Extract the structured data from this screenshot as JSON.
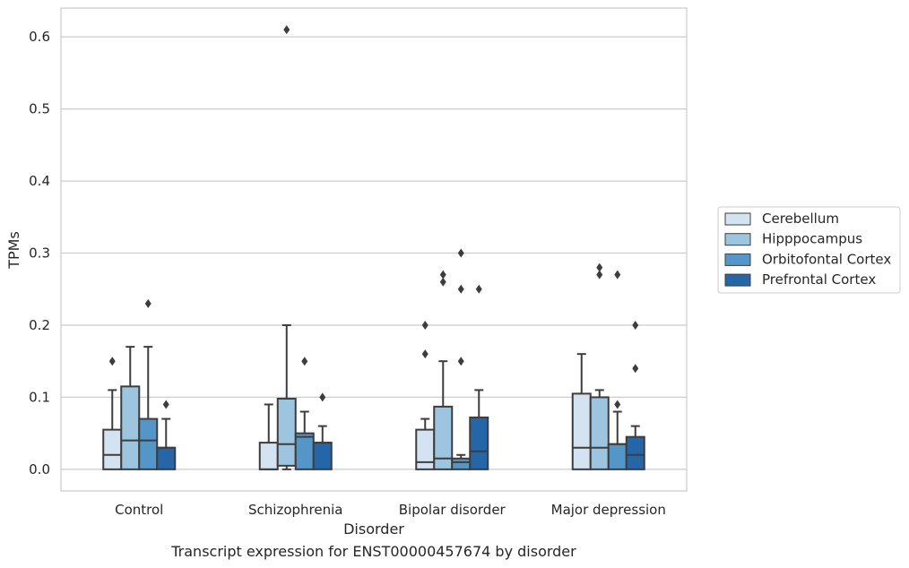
{
  "caption": "Transcript expression for ENST00000457674 by disorder",
  "chart_data": {
    "type": "box",
    "xlabel": "Disorder",
    "ylabel": "TPMs",
    "ylim": [
      -0.03,
      0.64
    ],
    "yticks": [
      0.0,
      0.1,
      0.2,
      0.3,
      0.4,
      0.5,
      0.6
    ],
    "ytick_labels": [
      "0.0",
      "0.1",
      "0.2",
      "0.3",
      "0.4",
      "0.5",
      "0.6"
    ],
    "grid": "horizontal",
    "legend_position": "right",
    "categories": [
      "Control",
      "Schizophrenia",
      "Bipolar disorder",
      "Major depression"
    ],
    "series": [
      {
        "name": "Cerebellum",
        "color": "#d4e3f2",
        "boxes": [
          {
            "whislo": 0.0,
            "q1": 0.0,
            "med": 0.02,
            "q3": 0.055,
            "whishi": 0.11,
            "fliers": [
              0.15
            ]
          },
          {
            "whislo": 0.0,
            "q1": 0.0,
            "med": 0.0,
            "q3": 0.037,
            "whishi": 0.09,
            "fliers": []
          },
          {
            "whislo": 0.0,
            "q1": 0.0,
            "med": 0.01,
            "q3": 0.055,
            "whishi": 0.07,
            "fliers": [
              0.16,
              0.2
            ]
          },
          {
            "whislo": 0.0,
            "q1": 0.0,
            "med": 0.03,
            "q3": 0.105,
            "whishi": 0.16,
            "fliers": []
          }
        ]
      },
      {
        "name": "Hipppocampus",
        "color": "#9dc5df",
        "boxes": [
          {
            "whislo": 0.0,
            "q1": 0.0,
            "med": 0.04,
            "q3": 0.115,
            "whishi": 0.17,
            "fliers": []
          },
          {
            "whislo": 0.0,
            "q1": 0.005,
            "med": 0.035,
            "q3": 0.098,
            "whishi": 0.2,
            "fliers": [
              0.61
            ]
          },
          {
            "whislo": 0.0,
            "q1": 0.0,
            "med": 0.015,
            "q3": 0.087,
            "whishi": 0.15,
            "fliers": [
              0.26,
              0.27
            ]
          },
          {
            "whislo": 0.0,
            "q1": 0.0,
            "med": 0.03,
            "q3": 0.1,
            "whishi": 0.11,
            "fliers": [
              0.27,
              0.28
            ]
          }
        ]
      },
      {
        "name": "Orbitofontal Cortex",
        "color": "#5596c8",
        "boxes": [
          {
            "whislo": 0.0,
            "q1": 0.0,
            "med": 0.04,
            "q3": 0.07,
            "whishi": 0.17,
            "fliers": [
              0.23
            ]
          },
          {
            "whislo": 0.0,
            "q1": 0.0,
            "med": 0.045,
            "q3": 0.05,
            "whishi": 0.08,
            "fliers": [
              0.15
            ]
          },
          {
            "whislo": 0.0,
            "q1": 0.0,
            "med": 0.01,
            "q3": 0.015,
            "whishi": 0.02,
            "fliers": [
              0.15,
              0.25,
              0.3
            ]
          },
          {
            "whislo": 0.0,
            "q1": 0.0,
            "med": 0.035,
            "q3": 0.035,
            "whishi": 0.08,
            "fliers": [
              0.09,
              0.27
            ]
          }
        ]
      },
      {
        "name": "Prefrontal Cortex",
        "color": "#2466a8",
        "boxes": [
          {
            "whislo": 0.0,
            "q1": 0.0,
            "med": 0.03,
            "q3": 0.03,
            "whishi": 0.07,
            "fliers": [
              0.09
            ]
          },
          {
            "whislo": 0.0,
            "q1": 0.0,
            "med": 0.037,
            "q3": 0.037,
            "whishi": 0.06,
            "fliers": [
              0.1
            ]
          },
          {
            "whislo": 0.0,
            "q1": 0.0,
            "med": 0.025,
            "q3": 0.072,
            "whishi": 0.11,
            "fliers": [
              0.25
            ]
          },
          {
            "whislo": 0.0,
            "q1": 0.0,
            "med": 0.02,
            "q3": 0.045,
            "whishi": 0.06,
            "fliers": [
              0.14,
              0.2
            ]
          }
        ]
      }
    ]
  }
}
